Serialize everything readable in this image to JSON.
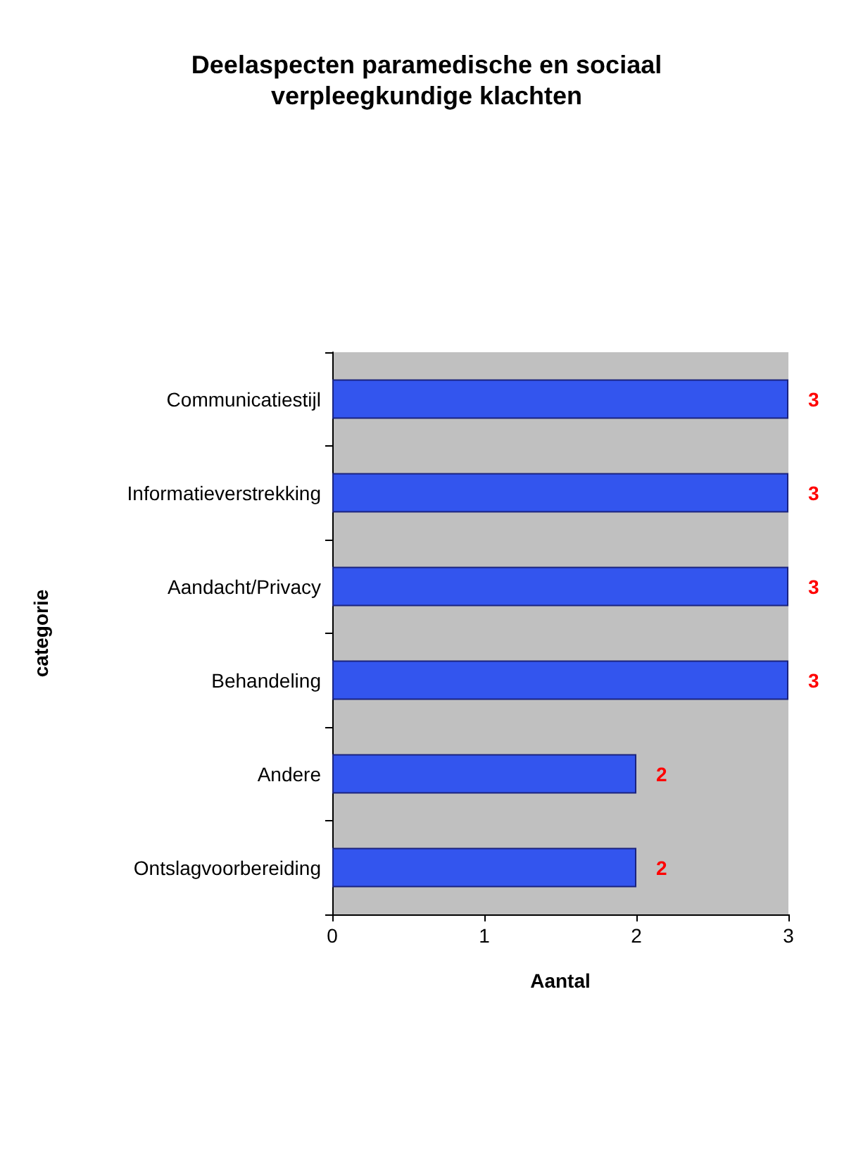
{
  "chart_data": {
    "type": "bar",
    "orientation": "horizontal",
    "title": "Deelaspecten paramedische en sociaal\nverpleegkundige klachten",
    "xlabel": "Aantal",
    "ylabel": "categorie",
    "categories": [
      "Communicatiestijl",
      "Informatieverstrekking",
      "Aandacht/Privacy",
      "Behandeling",
      "Andere",
      "Ontslagvoorbereiding"
    ],
    "values": [
      3,
      3,
      3,
      3,
      2,
      2
    ],
    "color": "#3355ee",
    "xlim": [
      0,
      3
    ],
    "xticks": [
      0,
      1,
      2,
      3
    ],
    "data_labels": true,
    "grid": false
  }
}
